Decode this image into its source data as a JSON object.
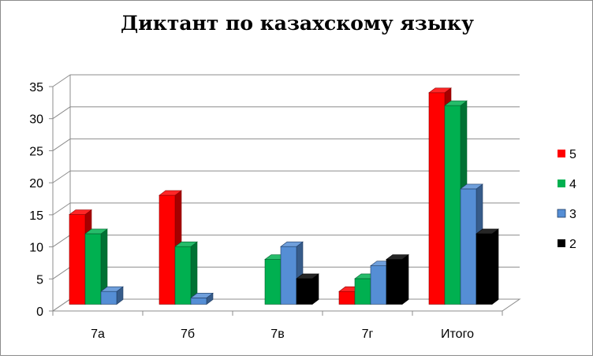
{
  "chart_data": {
    "type": "bar",
    "title": "Диктант по казахскому языку",
    "categories": [
      "7а",
      "7б",
      "7в",
      "7г",
      "Итого"
    ],
    "series": [
      {
        "name": "5",
        "color": "#ff0000",
        "values": [
          14,
          17,
          0,
          2,
          33
        ]
      },
      {
        "name": "4",
        "color": "#00b050",
        "values": [
          11,
          9,
          7,
          4,
          31
        ]
      },
      {
        "name": "3",
        "color": "#558ed5",
        "values": [
          2,
          1,
          9,
          6,
          18
        ]
      },
      {
        "name": "2",
        "color": "#000000",
        "values": [
          0,
          0,
          4,
          7,
          11
        ]
      }
    ],
    "ylim": [
      0,
      35
    ],
    "yticks": [
      0,
      5,
      10,
      15,
      20,
      25,
      30,
      35
    ],
    "grid": true,
    "legend": "right",
    "style": "3d-clustered-column"
  }
}
